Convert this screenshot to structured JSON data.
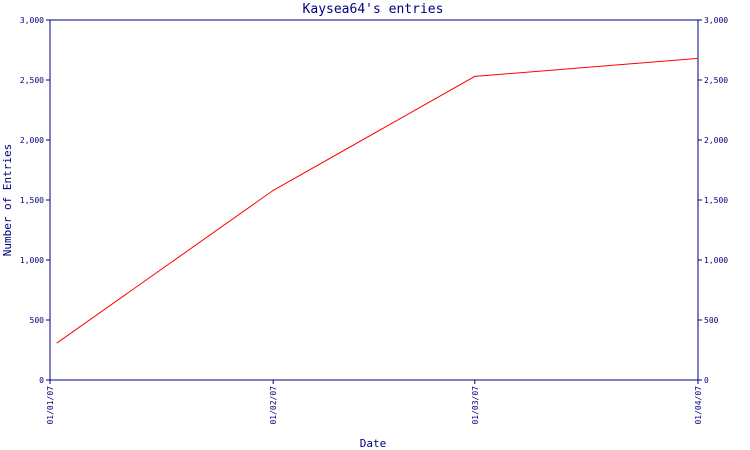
{
  "chart_data": {
    "type": "line",
    "title": "Kaysea64's entries",
    "xlabel": "Date",
    "ylabel": "Number of Entries",
    "x_ticks": [
      "01/01/07",
      "01/02/07",
      "01/03/07",
      "01/04/07"
    ],
    "y_ticks": [
      "0",
      "500",
      "1,000",
      "1,500",
      "2,000",
      "2,500",
      "3,000"
    ],
    "ylim": [
      0,
      3000
    ],
    "y_axis_right": true,
    "grid": false,
    "series": [
      {
        "x": [
          "2007-01-02",
          "2007-02-01",
          "2007-03-01",
          "2007-04-01"
        ],
        "values": [
          310,
          1580,
          2530,
          2680
        ]
      }
    ],
    "colors": {
      "axis": "#000080",
      "line": "#ff0000",
      "background": "#ffffff"
    }
  }
}
